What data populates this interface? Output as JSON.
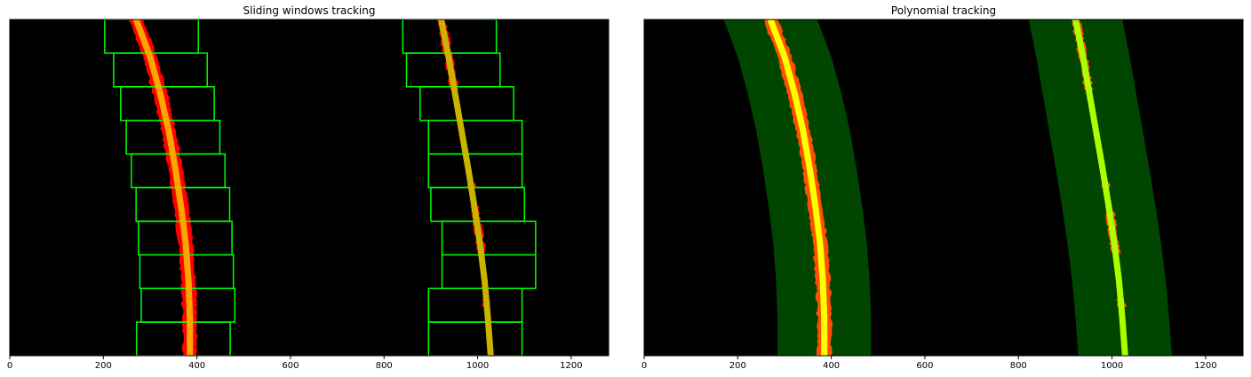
{
  "chart_data": [
    {
      "type": "image-plot",
      "title": "Sliding windows tracking",
      "x_ticks": [
        0,
        200,
        400,
        600,
        800,
        1000,
        1200
      ],
      "xlim": [
        0,
        1280
      ],
      "ylim": [
        720,
        0
      ],
      "y_axis_visible": false,
      "background": "#000000",
      "colors": {
        "lane_pixels": "#ff0000",
        "left_fit": "#ffa500",
        "right_fit": "#c8b400",
        "windows": "#00ff00"
      },
      "left_fit": {
        "x": [
          270,
          300,
          322,
          340,
          354,
          366,
          376,
          382,
          385,
          385
        ],
        "y": [
          0,
          80,
          160,
          240,
          320,
          400,
          480,
          560,
          640,
          720
        ]
      },
      "right_fit": {
        "x": [
          922,
          938,
          952,
          966,
          980,
          993,
          1005,
          1015,
          1022,
          1028
        ],
        "y": [
          0,
          80,
          160,
          240,
          320,
          400,
          480,
          560,
          640,
          720
        ]
      },
      "windows_y_edges": [
        0,
        72,
        144,
        216,
        288,
        360,
        432,
        504,
        576,
        648,
        720
      ],
      "left_windows_x_low": [
        203,
        222,
        237,
        249,
        260,
        270,
        275,
        278,
        281,
        271
      ],
      "left_windows_x_high": [
        403,
        422,
        437,
        449,
        460,
        470,
        475,
        478,
        481,
        471
      ],
      "right_windows_x_low": [
        840,
        848,
        877,
        895,
        895,
        900,
        924,
        924,
        895,
        895
      ],
      "right_windows_x_high": [
        1040,
        1048,
        1077,
        1095,
        1095,
        1100,
        1124,
        1124,
        1095,
        1095
      ]
    },
    {
      "type": "image-plot",
      "title": "Polynomial tracking",
      "x_ticks": [
        0,
        200,
        400,
        600,
        800,
        1000,
        1200
      ],
      "xlim": [
        0,
        1280
      ],
      "ylim": [
        720,
        0
      ],
      "y_axis_visible": false,
      "background": "#000000",
      "colors": {
        "lane_pixels": "#ff5000",
        "left_fit": "#ffff00",
        "right_fit": "#aaff00",
        "search_band": "#004600"
      },
      "margin": 100,
      "left_fit": {
        "x": [
          270,
          300,
          322,
          340,
          354,
          366,
          376,
          382,
          385,
          385
        ],
        "y": [
          0,
          80,
          160,
          240,
          320,
          400,
          480,
          560,
          640,
          720
        ]
      },
      "right_fit": {
        "x": [
          922,
          938,
          952,
          966,
          980,
          993,
          1005,
          1015,
          1022,
          1028
        ],
        "y": [
          0,
          80,
          160,
          240,
          320,
          400,
          480,
          560,
          640,
          720
        ]
      }
    }
  ]
}
